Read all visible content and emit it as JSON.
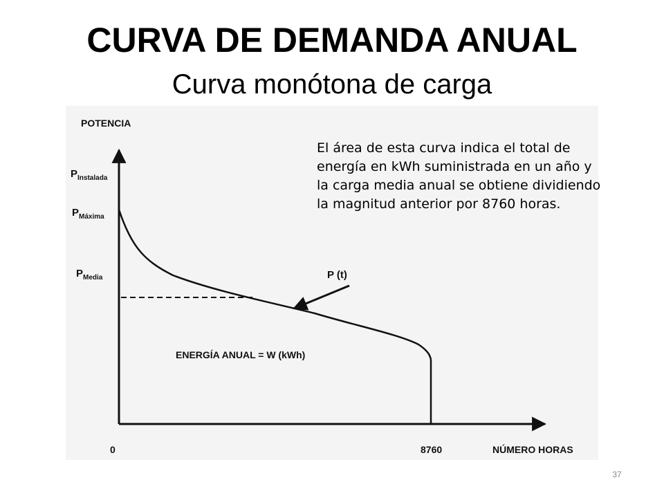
{
  "slide": {
    "title": "CURVA DE DEMANDA ANUAL",
    "subtitle": "Curva monótona de carga",
    "note": "El área de esta curva indica el total de\nenergía en kWh suministrada en un año y\nla carga media anual se obtiene dividiendo\nla magnitud anterior por 8760 horas.",
    "page_number": "37"
  },
  "diagram": {
    "y_axis_label": "POTENCIA",
    "x_axis_label": "NÚMERO HORAS",
    "x_origin_label": "0",
    "x_end_label": "8760",
    "p_instalada": {
      "main": "P",
      "sub": "Instalada"
    },
    "p_maxima": {
      "main": "P",
      "sub": "Máxima"
    },
    "p_media": {
      "main": "P",
      "sub": "Media"
    },
    "curve_label": "P (t)",
    "area_label": "ENERGÍA ANUAL = W (kWh)",
    "colors": {
      "background": "#ffffff",
      "line": "#111111",
      "panel": "#f4f4f4"
    }
  }
}
